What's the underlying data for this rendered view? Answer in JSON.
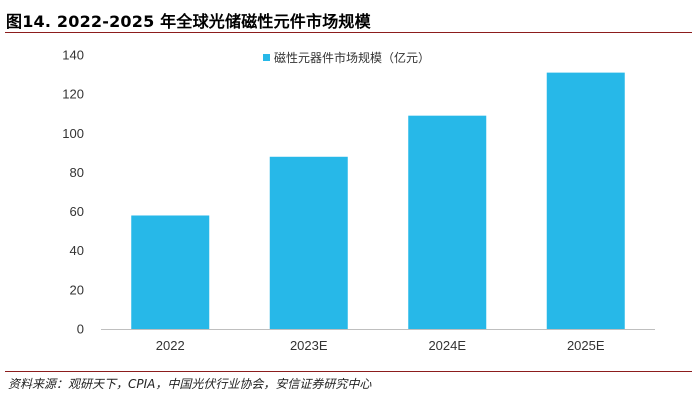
{
  "figure": {
    "title": "图14. 2022-2025 年全球光储磁性元件市场规模",
    "source": "资料来源：观研天下，CPIA，中国光伏行业协会，安信证券研究中心"
  },
  "chart_data": {
    "type": "bar",
    "categories": [
      "2022",
      "2023E",
      "2024E",
      "2025E"
    ],
    "series": [
      {
        "name": "磁性元器件市场规模（亿元）",
        "values": [
          58,
          88,
          109,
          131
        ],
        "color": "#27b8e8"
      }
    ],
    "ylim": [
      0,
      140
    ],
    "yticks": [
      0,
      20,
      40,
      60,
      80,
      100,
      120,
      140
    ],
    "legend_position": "top-center",
    "grid": false,
    "xlabel": "",
    "ylabel": ""
  }
}
